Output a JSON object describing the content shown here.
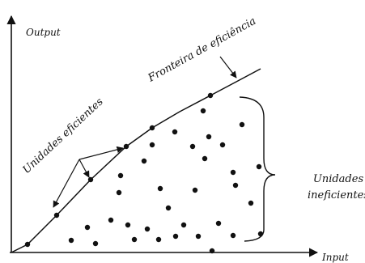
{
  "labels": {
    "y_axis": "Output",
    "x_axis": "Input",
    "frontier": "Fronteira de eficiência",
    "efficient_units": "Unidades eficientes",
    "inefficient_line1": "Unidades",
    "inefficient_line2": "ineficientes"
  },
  "colors": {
    "ink": "#111111",
    "background": "#ffffff"
  }
}
